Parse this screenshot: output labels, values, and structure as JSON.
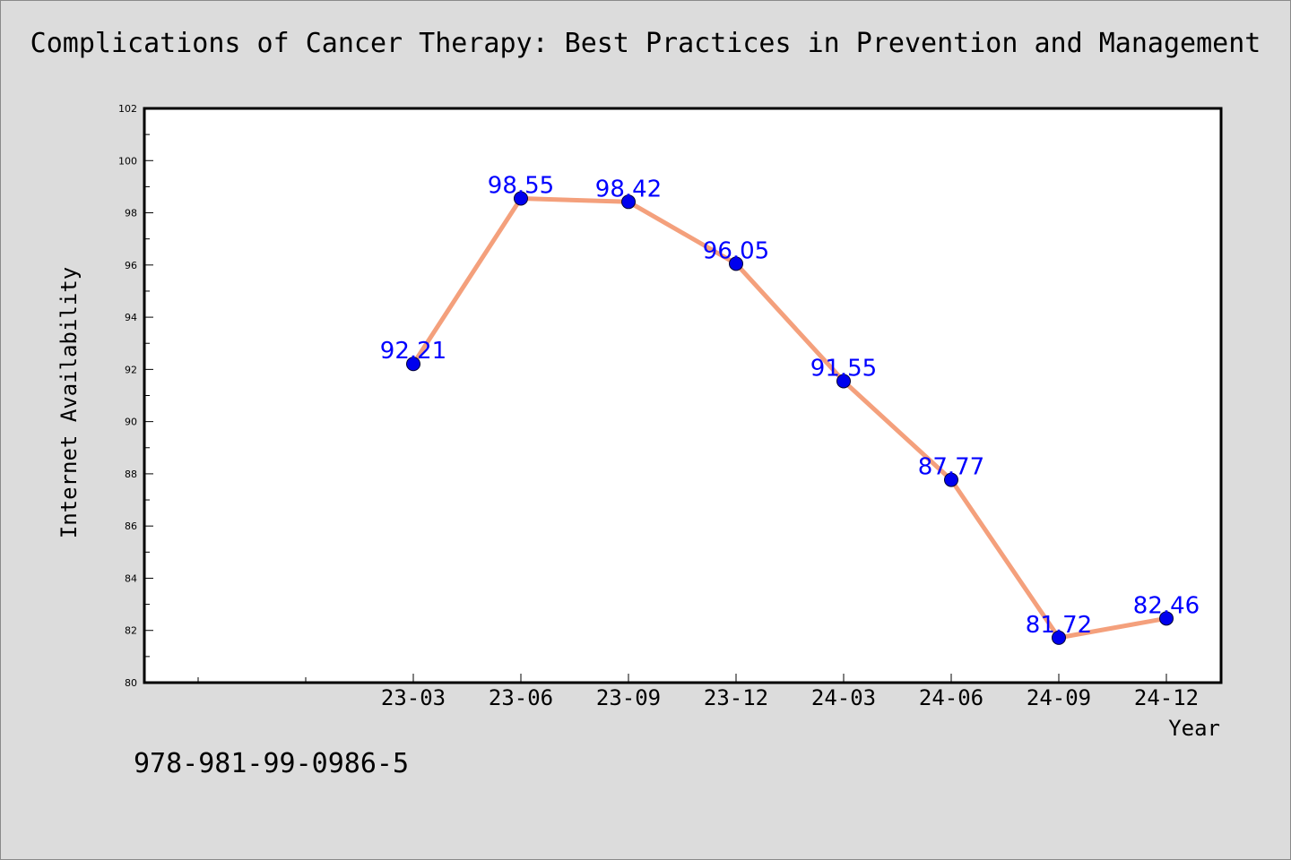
{
  "chart_data": {
    "type": "line",
    "title": "Complications of Cancer Therapy: Best Practices in Prevention and Management",
    "xlabel": "Year",
    "ylabel": "Internet Availability",
    "categories": [
      "23-03",
      "23-06",
      "23-09",
      "23-12",
      "24-03",
      "24-06",
      "24-09",
      "24-12"
    ],
    "values": [
      92.21,
      98.55,
      98.42,
      96.05,
      91.55,
      87.77,
      81.72,
      82.46
    ],
    "data_labels": [
      "92.21",
      "98.55",
      "98.42",
      "96.05",
      "91.55",
      "87.77",
      "81.72",
      "82.46"
    ],
    "ylim": [
      80,
      102
    ],
    "yticks": [
      "80",
      "82",
      "84",
      "86",
      "88",
      "90",
      "92",
      "94",
      "96",
      "98",
      "100",
      "102"
    ],
    "grid": false,
    "legend": "none",
    "colors": {
      "line": "#f4a07c",
      "marker": "#0000ee",
      "label": "#0000ff",
      "background": "#dcdcdc",
      "plot_background": "#ffffff"
    }
  },
  "footer": {
    "isbn": "978-981-99-0986-5"
  }
}
